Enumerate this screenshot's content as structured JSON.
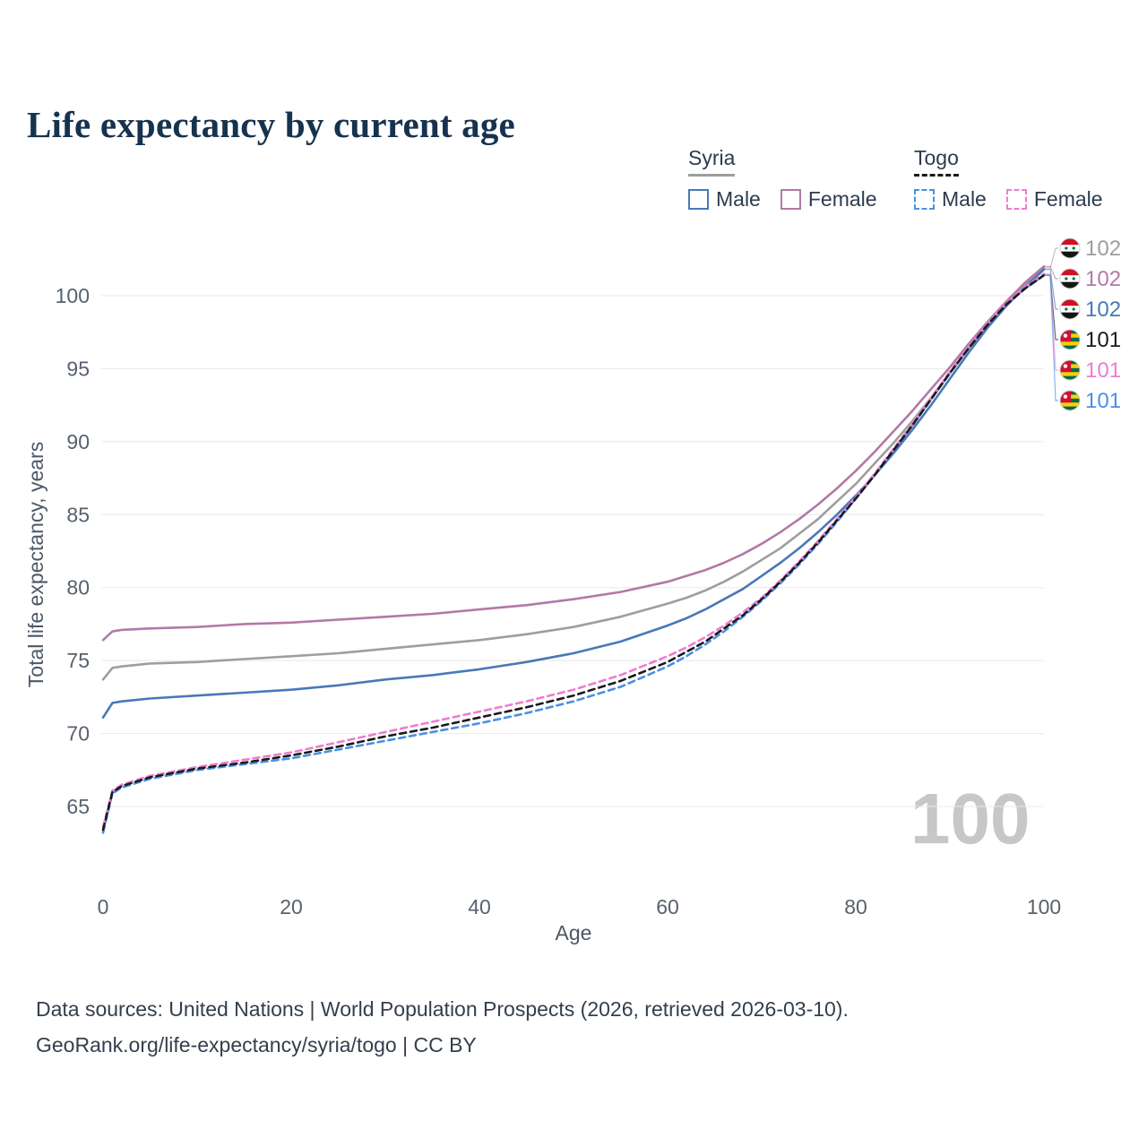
{
  "title": "Life expectancy by current age",
  "legend": {
    "groups": [
      {
        "label": "Syria",
        "entries": [
          {
            "label": "Male",
            "series": "syria_male"
          },
          {
            "label": "Female",
            "series": "syria_female"
          }
        ]
      },
      {
        "label": "Togo",
        "entries": [
          {
            "label": "Male",
            "series": "togo_male"
          },
          {
            "label": "Female",
            "series": "togo_female"
          }
        ]
      }
    ]
  },
  "watermark": "100",
  "footer": {
    "line1": "Data sources: United Nations | World Population Prospects (2026, retrieved 2026-03-10).",
    "line2": "GeoRank.org/life-expectancy/syria/togo | CC BY"
  },
  "colors": {
    "syria_male": "#4878b8",
    "syria_female": "#b279a7",
    "syria_total": "#9e9e9e",
    "togo_male": "#4a90e2",
    "togo_female": "#ef7cd1",
    "togo_total": "#1a1a1a",
    "title_text": "#16324f",
    "gridline": "#e8e8e8",
    "watermark": "#c7c7c7"
  },
  "chart_data": {
    "type": "line",
    "title": "Life expectancy by current age",
    "xlabel": "Age",
    "ylabel": "Total life expectancy, years",
    "xlim": [
      0,
      100
    ],
    "ylim": [
      62,
      103
    ],
    "xticks": [
      0,
      20,
      40,
      60,
      80,
      100
    ],
    "yticks": [
      65,
      70,
      75,
      80,
      85,
      90,
      95,
      100
    ],
    "grid": "horizontal",
    "legend_position": "top-right",
    "x": [
      0,
      1,
      2,
      5,
      10,
      15,
      20,
      25,
      30,
      35,
      40,
      45,
      50,
      55,
      60,
      62,
      64,
      66,
      68,
      70,
      72,
      74,
      76,
      78,
      80,
      82,
      84,
      86,
      88,
      90,
      92,
      94,
      96,
      98,
      100
    ],
    "series": [
      {
        "id": "syria_total",
        "name": "Syria",
        "color": "#9e9e9e",
        "dash": false,
        "values": [
          73.7,
          74.5,
          74.6,
          74.8,
          74.9,
          75.1,
          75.3,
          75.5,
          75.8,
          76.1,
          76.4,
          76.8,
          77.3,
          78.0,
          78.9,
          79.3,
          79.8,
          80.4,
          81.1,
          81.9,
          82.7,
          83.7,
          84.7,
          85.9,
          87.1,
          88.5,
          89.9,
          91.4,
          93.0,
          94.7,
          96.4,
          98.0,
          99.4,
          100.7,
          101.9
        ]
      },
      {
        "id": "syria_female",
        "name": "Syria Female",
        "color": "#b279a7",
        "dash": false,
        "values": [
          76.4,
          77.0,
          77.1,
          77.2,
          77.3,
          77.5,
          77.6,
          77.8,
          78.0,
          78.2,
          78.5,
          78.8,
          79.2,
          79.7,
          80.4,
          80.8,
          81.2,
          81.7,
          82.3,
          83.0,
          83.8,
          84.7,
          85.7,
          86.8,
          88.0,
          89.3,
          90.7,
          92.1,
          93.6,
          95.1,
          96.7,
          98.2,
          99.6,
          100.9,
          102.0
        ]
      },
      {
        "id": "syria_male",
        "name": "Syria Male",
        "color": "#4878b8",
        "dash": false,
        "values": [
          71.1,
          72.1,
          72.2,
          72.4,
          72.6,
          72.8,
          73.0,
          73.3,
          73.7,
          74.0,
          74.4,
          74.9,
          75.5,
          76.3,
          77.4,
          77.9,
          78.5,
          79.2,
          79.9,
          80.8,
          81.7,
          82.7,
          83.8,
          85.0,
          86.3,
          87.7,
          89.2,
          90.8,
          92.5,
          94.3,
          96.1,
          97.8,
          99.3,
          100.6,
          101.8
        ]
      },
      {
        "id": "togo_male",
        "name": "Togo Male",
        "color": "#4a90e2",
        "dash": true,
        "values": [
          63.2,
          65.9,
          66.3,
          66.9,
          67.5,
          67.9,
          68.3,
          68.9,
          69.5,
          70.1,
          70.7,
          71.4,
          72.2,
          73.2,
          74.6,
          75.3,
          76.1,
          77.0,
          78.0,
          79.1,
          80.3,
          81.6,
          83.0,
          84.5,
          86.1,
          87.7,
          89.4,
          91.1,
          92.9,
          94.7,
          96.4,
          98.0,
          99.4,
          100.5,
          101.4
        ]
      },
      {
        "id": "togo_female",
        "name": "Togo Female",
        "color": "#ef7cd1",
        "dash": true,
        "values": [
          63.6,
          66.1,
          66.5,
          67.1,
          67.7,
          68.2,
          68.7,
          69.4,
          70.1,
          70.8,
          71.5,
          72.2,
          73.0,
          74.0,
          75.3,
          75.9,
          76.6,
          77.4,
          78.3,
          79.3,
          80.5,
          81.8,
          83.2,
          84.7,
          86.2,
          87.8,
          89.5,
          91.2,
          93.0,
          94.8,
          96.5,
          98.1,
          99.5,
          100.6,
          101.5
        ]
      },
      {
        "id": "togo_total",
        "name": "Togo",
        "color": "#1a1a1a",
        "dash": true,
        "values": [
          63.4,
          66.0,
          66.4,
          67.0,
          67.6,
          68.0,
          68.5,
          69.1,
          69.8,
          70.4,
          71.1,
          71.8,
          72.6,
          73.6,
          74.9,
          75.6,
          76.3,
          77.2,
          78.1,
          79.2,
          80.4,
          81.7,
          83.1,
          84.6,
          86.1,
          87.7,
          89.4,
          91.1,
          92.9,
          94.7,
          96.4,
          98.0,
          99.4,
          100.5,
          101.4
        ]
      }
    ],
    "end_labels": [
      {
        "series": "syria_total",
        "flag": "syria",
        "value": "102",
        "color": "#9e9e9e"
      },
      {
        "series": "syria_female",
        "flag": "syria",
        "value": "102",
        "color": "#b279a7"
      },
      {
        "series": "syria_male",
        "flag": "syria",
        "value": "102",
        "color": "#4878b8"
      },
      {
        "series": "togo_total",
        "flag": "togo",
        "value": "101",
        "color": "#1a1a1a"
      },
      {
        "series": "togo_female",
        "flag": "togo",
        "value": "101",
        "color": "#ef7cd1"
      },
      {
        "series": "togo_male",
        "flag": "togo",
        "value": "101",
        "color": "#4a90e2"
      }
    ]
  }
}
